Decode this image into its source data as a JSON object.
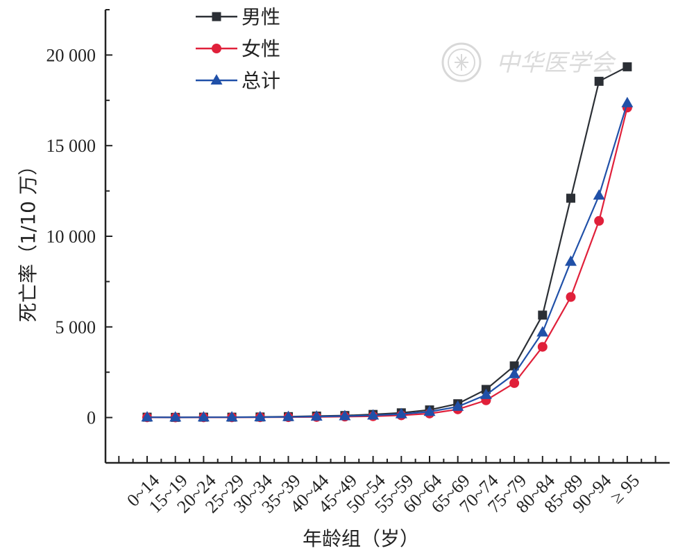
{
  "chart_data": {
    "type": "line",
    "xlabel": "年龄组（岁）",
    "ylabel": "死亡率（1/10 万）",
    "ylim": [
      -2500,
      22500
    ],
    "yticks": [
      0,
      5000,
      10000,
      15000,
      20000
    ],
    "ytick_labels": [
      "0",
      "5 000",
      "10 000",
      "15 000",
      "20 000"
    ],
    "categories": [
      "0~14",
      "15~19",
      "20~24",
      "25~29",
      "30~34",
      "35~39",
      "40~44",
      "45~49",
      "50~54",
      "55~59",
      "60~64",
      "65~69",
      "70~74",
      "75~79",
      "80~84",
      "85~89",
      "90~94",
      "≥ 95"
    ],
    "series": [
      {
        "name": "男性",
        "color": "#2b2f35",
        "marker": "square",
        "values": [
          20,
          10,
          20,
          20,
          30,
          50,
          80,
          110,
          170,
          260,
          420,
          760,
          1550,
          2850,
          5650,
          12100,
          18550,
          19350
        ]
      },
      {
        "name": "女性",
        "color": "#e0203a",
        "marker": "circle",
        "values": [
          10,
          5,
          10,
          10,
          15,
          20,
          30,
          50,
          70,
          120,
          220,
          450,
          950,
          1900,
          3900,
          6650,
          10850,
          17100
        ]
      },
      {
        "name": "总计",
        "color": "#2050a8",
        "marker": "triangle",
        "values": [
          15,
          8,
          15,
          15,
          22,
          35,
          55,
          80,
          120,
          190,
          320,
          600,
          1250,
          2400,
          4700,
          8600,
          12250,
          17350
        ]
      }
    ],
    "grid": false,
    "legend_position": "top-left"
  },
  "watermark": {
    "text": "中华医学会"
  }
}
